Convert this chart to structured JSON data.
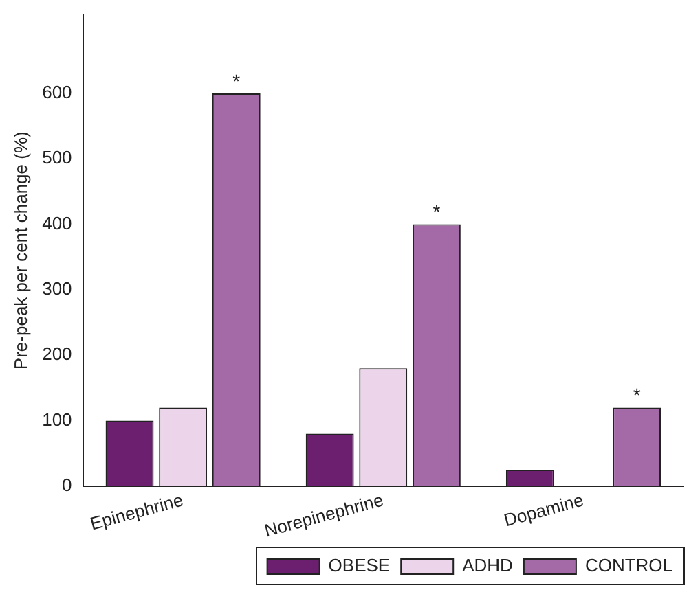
{
  "chart_data": {
    "type": "bar",
    "ylabel": "Pre-peak per cent change (%)",
    "categories": [
      "Epinephrine",
      "Norepinephrine",
      "Dopamine"
    ],
    "series": [
      {
        "name": "OBESE",
        "color": "#6b1f6e",
        "values": [
          100,
          80,
          25
        ]
      },
      {
        "name": "ADHD",
        "color": "#ecd5ea",
        "values": [
          120,
          180,
          null
        ]
      },
      {
        "name": "CONTROL",
        "color": "#a46aa8",
        "values": [
          600,
          400,
          120
        ],
        "value_labels": [
          "*",
          "*",
          "*"
        ]
      }
    ],
    "ylim": [
      0,
      720
    ],
    "yticks": [
      0,
      100,
      200,
      300,
      400,
      500,
      600
    ],
    "grid": false,
    "legend": "bottom"
  }
}
